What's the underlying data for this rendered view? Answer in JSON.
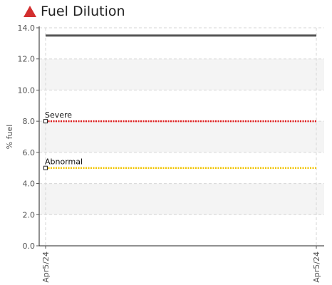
{
  "chart_data": {
    "type": "line",
    "title": "Fuel Dilution",
    "title_icon": "warning-triangle-icon",
    "title_icon_color": "#d32f2f",
    "ylabel": "% fuel",
    "xlabel": "",
    "ylim": [
      0,
      14
    ],
    "yticks": [
      "0.0",
      "2.0",
      "4.0",
      "6.0",
      "8.0",
      "10.0",
      "12.0",
      "14.0"
    ],
    "categories": [
      "Apr5/24",
      "Apr5/24"
    ],
    "grid": true,
    "series": [
      {
        "name": "",
        "values": [
          13.5,
          13.5
        ],
        "color": "#555555"
      }
    ],
    "thresholds": [
      {
        "label": "Severe",
        "value": 8.0,
        "color": "#e01b1b"
      },
      {
        "label": "Abnormal",
        "value": 5.0,
        "color": "#f2c400"
      }
    ]
  }
}
